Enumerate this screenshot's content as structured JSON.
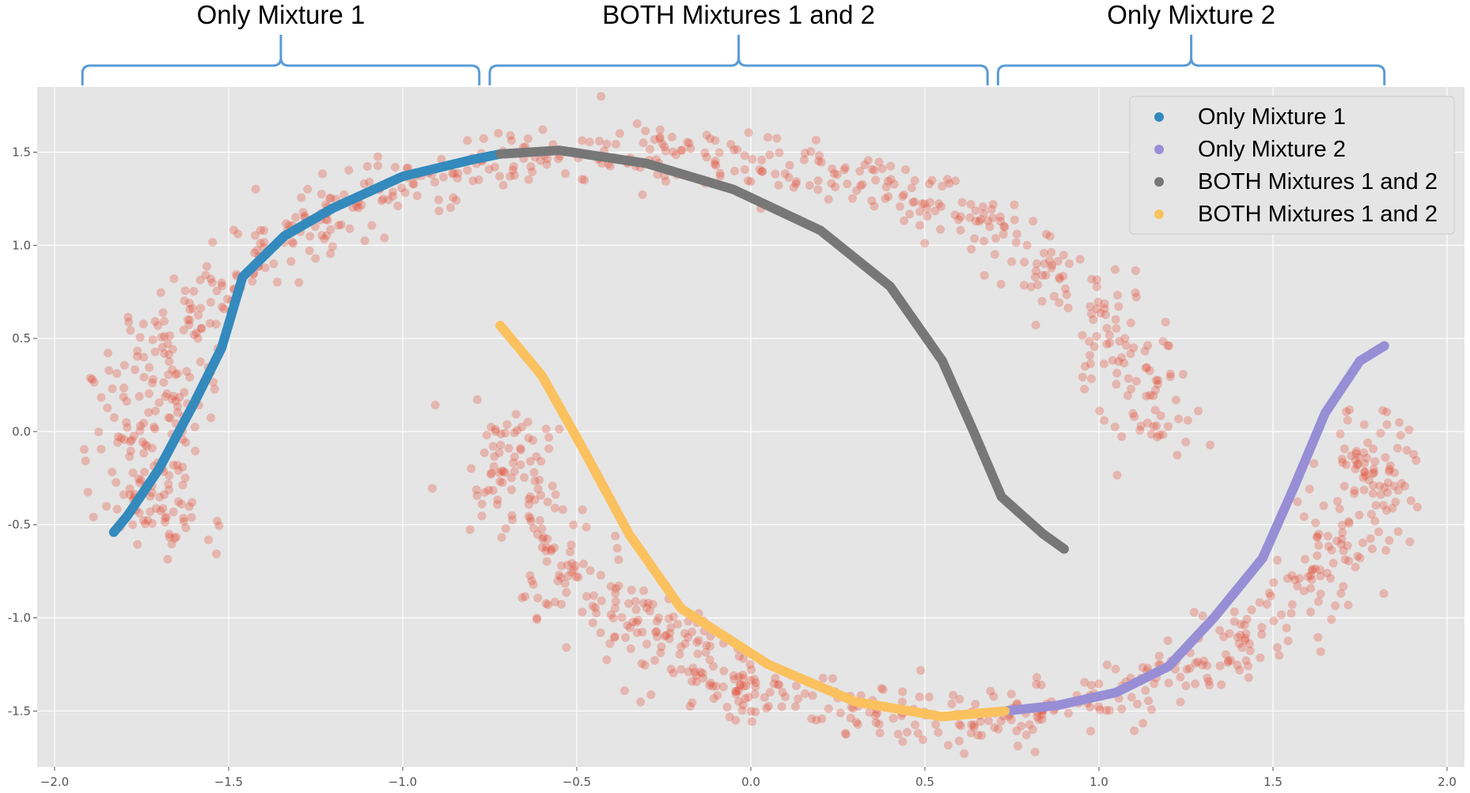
{
  "brackets": [
    {
      "label": "Only Mixture 1",
      "x_from": -1.92,
      "x_to": -0.78
    },
    {
      "label": "BOTH Mixtures 1 and 2",
      "x_from": -0.75,
      "x_to": 0.68
    },
    {
      "label": "Only Mixture 2",
      "x_from": 0.71,
      "x_to": 1.82
    }
  ],
  "chart_data": {
    "type": "scatter",
    "title": "",
    "xlabel": "",
    "ylabel": "",
    "xlim": [
      -2.05,
      2.05
    ],
    "ylim": [
      -1.8,
      1.85
    ],
    "xticks": [
      -2.0,
      -1.5,
      -1.0,
      -0.5,
      0.0,
      0.5,
      1.0,
      1.5,
      2.0
    ],
    "xtick_labels": [
      "−2.0",
      "−1.5",
      "−1.0",
      "−0.5",
      "0.0",
      "0.5",
      "1.0",
      "1.5",
      "2.0"
    ],
    "yticks": [
      1.5,
      1.0,
      0.5,
      0.0,
      -0.5,
      -1.0,
      -1.5
    ],
    "ytick_labels": [
      "1.5",
      "1.0",
      "0.5",
      "0.0",
      "-0.5",
      "-1.0",
      "-1.5"
    ],
    "grid": true,
    "background": "#e5e5e5",
    "legend_position": "top-right",
    "data_cloud": {
      "color": "#e24a33",
      "opacity": 0.3,
      "moons": [
        {
          "center_x": -0.3,
          "center_y": -0.05,
          "radius_x": 1.45,
          "radius_y": 1.55,
          "angle_from_deg": 0,
          "angle_to_deg": 200,
          "n": 700
        },
        {
          "center_x": 0.55,
          "center_y": 0.05,
          "radius_x": 1.25,
          "radius_y": 1.6,
          "angle_from_deg": 180,
          "angle_to_deg": 360,
          "n": 650
        }
      ],
      "noise": 0.08
    },
    "series": [
      {
        "name": "Only Mixture 1",
        "color": "#348abd",
        "points": [
          [
            -1.83,
            -0.54
          ],
          [
            -1.79,
            -0.45
          ],
          [
            -1.7,
            -0.2
          ],
          [
            -1.6,
            0.15
          ],
          [
            -1.52,
            0.45
          ],
          [
            -1.46,
            0.83
          ],
          [
            -1.34,
            1.05
          ],
          [
            -1.2,
            1.2
          ],
          [
            -1.0,
            1.37
          ],
          [
            -0.8,
            1.46
          ],
          [
            -0.72,
            1.49
          ]
        ]
      },
      {
        "name": "Only Mixture 2",
        "color": "#988ed5",
        "points": [
          [
            0.73,
            -1.5
          ],
          [
            0.88,
            -1.47
          ],
          [
            1.05,
            -1.4
          ],
          [
            1.2,
            -1.26
          ],
          [
            1.33,
            -1.0
          ],
          [
            1.47,
            -0.68
          ],
          [
            1.56,
            -0.3
          ],
          [
            1.65,
            0.1
          ],
          [
            1.75,
            0.38
          ],
          [
            1.82,
            0.46
          ]
        ]
      },
      {
        "name": "BOTH Mixtures 1 and 2",
        "color": "#777777",
        "points": [
          [
            -0.72,
            1.49
          ],
          [
            -0.55,
            1.51
          ],
          [
            -0.3,
            1.44
          ],
          [
            -0.05,
            1.3
          ],
          [
            0.2,
            1.08
          ],
          [
            0.4,
            0.78
          ],
          [
            0.55,
            0.38
          ],
          [
            0.64,
            0.0
          ],
          [
            0.72,
            -0.35
          ],
          [
            0.84,
            -0.55
          ],
          [
            0.9,
            -0.63
          ]
        ]
      },
      {
        "name": "BOTH Mixtures 1 and 2",
        "color": "#fbc15e",
        "points": [
          [
            -0.72,
            0.57
          ],
          [
            -0.6,
            0.3
          ],
          [
            -0.48,
            -0.1
          ],
          [
            -0.35,
            -0.55
          ],
          [
            -0.2,
            -0.95
          ],
          [
            0.05,
            -1.25
          ],
          [
            0.3,
            -1.45
          ],
          [
            0.55,
            -1.53
          ],
          [
            0.73,
            -1.5
          ]
        ]
      }
    ]
  }
}
